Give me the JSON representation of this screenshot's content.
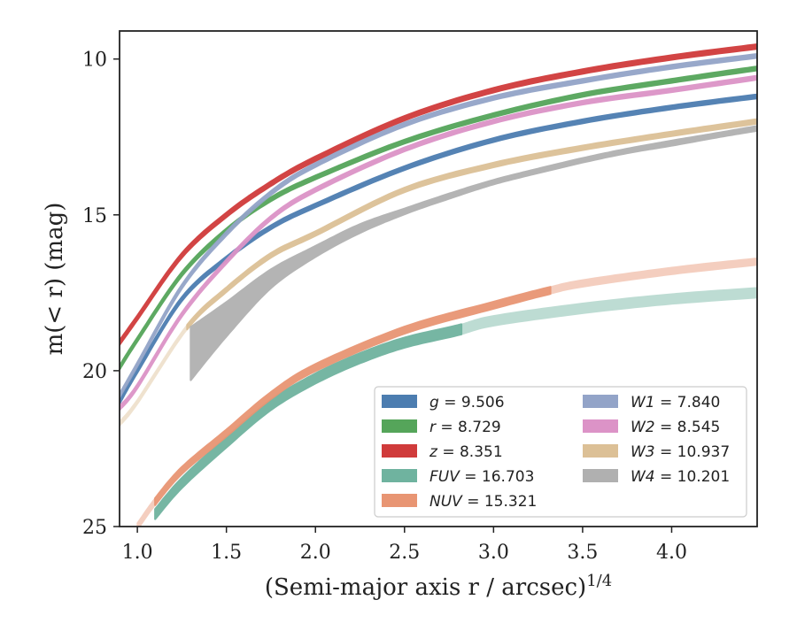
{
  "chart_data": {
    "type": "line",
    "xlabel": "(Semi-major axis r / arcsec)",
    "xlabel_superscript": "1/4",
    "ylabel": "m(< r) (mag)",
    "xlim": [
      0.9,
      4.48
    ],
    "ylim": [
      25,
      9.1
    ],
    "y_inverted": true,
    "grid": false,
    "legend_placement": "lower-right",
    "x_ticks": [
      "1.0",
      "1.5",
      "2.0",
      "2.5",
      "3.0",
      "3.5",
      "4.0"
    ],
    "y_ticks": [
      "10",
      "15",
      "20",
      "25"
    ],
    "series": [
      {
        "name": "g = 9.506",
        "label_symbol": "g",
        "label_value": "9.506",
        "color": "#4c7db0",
        "x": [
          0.9,
          1.0,
          1.25,
          1.5,
          1.75,
          2.0,
          2.5,
          3.0,
          3.5,
          4.0,
          4.48
        ],
        "y": [
          21.0,
          20.0,
          17.7,
          16.4,
          15.4,
          14.7,
          13.5,
          12.6,
          12.0,
          11.55,
          11.2
        ],
        "band": 0.12
      },
      {
        "name": "r = 8.729",
        "label_symbol": "r",
        "label_value": "8.729",
        "color": "#55a55a",
        "x": [
          0.9,
          1.0,
          1.25,
          1.5,
          1.75,
          2.0,
          2.5,
          3.0,
          3.5,
          4.0,
          4.48
        ],
        "y": [
          19.9,
          19.0,
          16.9,
          15.5,
          14.5,
          13.8,
          12.65,
          11.8,
          11.15,
          10.7,
          10.3
        ],
        "band": 0.12
      },
      {
        "name": "z = 8.351",
        "label_symbol": "z",
        "label_value": "8.351",
        "color": "#d03b3b",
        "x": [
          0.9,
          1.0,
          1.25,
          1.5,
          1.75,
          2.0,
          2.5,
          3.0,
          3.5,
          4.0,
          4.48
        ],
        "y": [
          19.1,
          18.3,
          16.3,
          15.0,
          14.0,
          13.2,
          11.9,
          11.0,
          10.4,
          9.95,
          9.6
        ],
        "band": 0.14
      },
      {
        "name": "FUV = 16.703",
        "label_symbol": "FUV",
        "label_value": "16.703",
        "color": "#6fb39f",
        "x": [
          1.1,
          1.25,
          1.5,
          1.75,
          2.0,
          2.25,
          2.5,
          2.8,
          3.0,
          3.5,
          4.0,
          4.48
        ],
        "y": [
          24.6,
          23.6,
          22.3,
          21.1,
          20.25,
          19.6,
          19.1,
          18.7,
          18.4,
          18.0,
          17.7,
          17.5
        ],
        "band": 0.32,
        "faded_after": 2.8
      },
      {
        "name": "NUV = 15.321",
        "label_symbol": "NUV",
        "label_value": "15.321",
        "color": "#e89573",
        "x": [
          1.0,
          1.1,
          1.25,
          1.5,
          1.75,
          2.0,
          2.5,
          3.0,
          3.3,
          3.5,
          4.0,
          4.48
        ],
        "y": [
          25.0,
          24.2,
          23.2,
          22.0,
          20.8,
          19.9,
          18.7,
          17.9,
          17.45,
          17.2,
          16.8,
          16.5
        ],
        "band": 0.22,
        "faded_after": 3.3,
        "faded_before": 1.1
      },
      {
        "name": "W1 = 7.840",
        "label_symbol": "W1",
        "label_value": "7.840",
        "color": "#93a4c8",
        "x": [
          0.9,
          1.0,
          1.25,
          1.5,
          1.75,
          2.0,
          2.5,
          3.0,
          3.5,
          4.0,
          4.48
        ],
        "y": [
          20.8,
          19.8,
          17.3,
          15.6,
          14.3,
          13.4,
          12.1,
          11.25,
          10.7,
          10.25,
          9.9
        ],
        "band": 0.12
      },
      {
        "name": "W2 = 8.545",
        "label_symbol": "W2",
        "label_value": "8.545",
        "color": "#dc93c7",
        "x": [
          0.9,
          1.0,
          1.25,
          1.5,
          1.75,
          2.0,
          2.5,
          3.0,
          3.5,
          4.0,
          4.48
        ],
        "y": [
          21.2,
          20.5,
          18.2,
          16.5,
          15.1,
          14.2,
          12.9,
          12.0,
          11.4,
          11.0,
          10.6
        ],
        "band": 0.12
      },
      {
        "name": "W3 = 10.937",
        "label_symbol": "W3",
        "label_value": "10.937",
        "color": "#dcc096",
        "x": [
          0.9,
          1.0,
          1.28,
          1.5,
          1.75,
          2.0,
          2.5,
          3.0,
          3.5,
          4.0,
          4.48
        ],
        "y": [
          21.7,
          21.0,
          18.6,
          17.4,
          16.3,
          15.6,
          14.2,
          13.4,
          12.85,
          12.4,
          12.0
        ],
        "band": 0.14,
        "faded_before": 1.28
      },
      {
        "name": "W4 = 10.201",
        "label_symbol": "W4",
        "label_value": "10.201",
        "color": "#b0b0b0",
        "x": [
          1.3,
          1.5,
          1.75,
          2.0,
          2.25,
          2.5,
          2.75,
          3.0,
          3.25,
          3.5,
          3.75,
          4.0,
          4.25,
          4.48
        ],
        "y": [
          19.5,
          18.4,
          17.1,
          16.2,
          15.45,
          14.9,
          14.4,
          13.95,
          13.6,
          13.25,
          12.95,
          12.7,
          12.45,
          12.2
        ],
        "band_upper": [
          18.6,
          17.8,
          16.75,
          16.0,
          15.3,
          14.8,
          14.32,
          13.88,
          13.52,
          13.18,
          12.88,
          12.62,
          12.38,
          12.15
        ],
        "band_lower": [
          20.3,
          18.9,
          17.35,
          16.35,
          15.58,
          14.98,
          14.48,
          14.02,
          13.66,
          13.32,
          13.02,
          12.78,
          12.52,
          12.3
        ]
      }
    ],
    "legend_columns": [
      [
        "g = 9.506",
        "r = 8.729",
        "z = 8.351",
        "FUV = 16.703",
        "NUV = 15.321"
      ],
      [
        "W1 = 7.840",
        "W2 = 8.545",
        "W3 = 10.937",
        "W4 = 10.201"
      ]
    ]
  }
}
